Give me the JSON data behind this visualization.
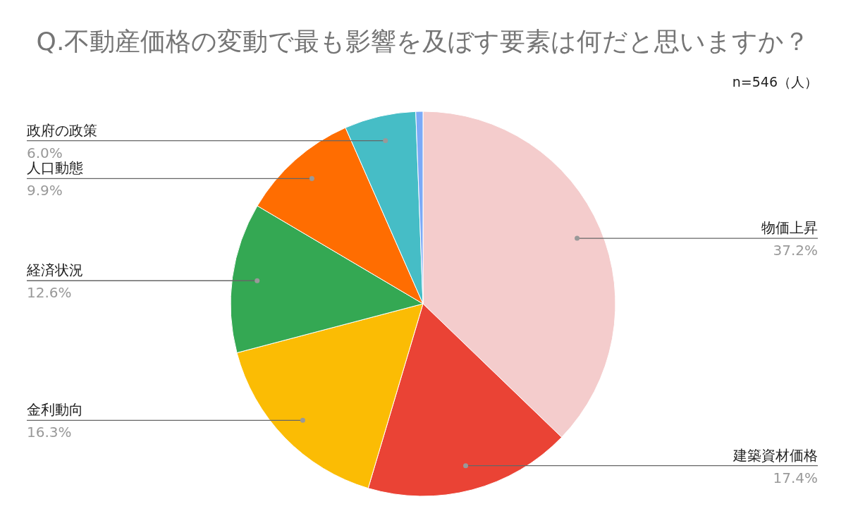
{
  "chart_data": {
    "type": "pie",
    "title": "Q.不動産価格の変動で最も影響を及ぼす要素は何だと思いますか？",
    "annotations": [
      "n=546（人）"
    ],
    "categories": [
      "物価上昇",
      "建築資材価格",
      "金利動向",
      "経済状況",
      "人口動態",
      "政府の政策",
      null
    ],
    "values": [
      37.2,
      17.4,
      16.3,
      12.6,
      9.9,
      6.0,
      0.6
    ],
    "colors": [
      "#f4cccc",
      "#ea4335",
      "#fbbc04",
      "#34a853",
      "#ff6d01",
      "#46bdc6",
      "#7baaf7"
    ],
    "value_labels": [
      "37.2%",
      "17.4%",
      "16.3%",
      "12.6%",
      "9.9%",
      "6.0%",
      null
    ],
    "legend": false
  }
}
